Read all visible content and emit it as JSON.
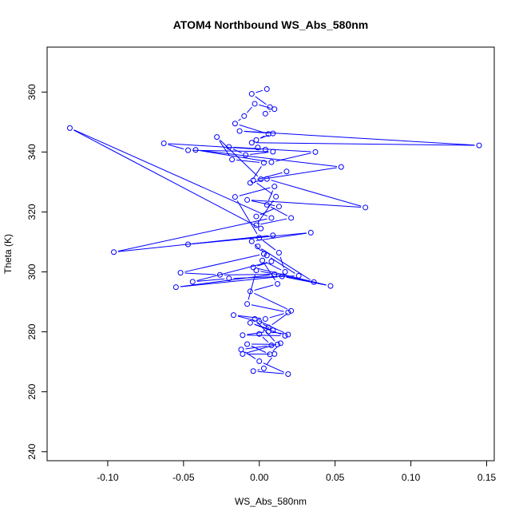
{
  "chart_data": {
    "type": "line",
    "title": "ATOM4 Northbound WS_Abs_580nm",
    "xlabel": "WS_Abs_580nm",
    "ylabel": "Theta (K)",
    "xlim": [
      -0.14,
      0.155
    ],
    "ylim": [
      237,
      375
    ],
    "xticks": [
      -0.1,
      -0.05,
      0.0,
      0.05,
      0.1,
      0.15
    ],
    "xtick_labels": [
      "-0.10",
      "-0.05",
      "0.00",
      "0.05",
      "0.10",
      "0.15"
    ],
    "yticks": [
      240,
      260,
      280,
      300,
      320,
      340,
      360
    ],
    "ytick_labels": [
      "240",
      "260",
      "280",
      "300",
      "320",
      "340",
      "360"
    ],
    "grid": false,
    "legend": "none",
    "marker": "open-circle",
    "color": "#0000ff",
    "series": [
      {
        "x": [
          0.005,
          -0.005,
          0.007,
          0.004,
          0.01,
          -0.003,
          -0.01,
          -0.016,
          0.006,
          -0.002,
          0.009,
          -0.013,
          0.145,
          -0.005,
          -0.001,
          0.004,
          -0.063,
          -0.047,
          0.009,
          -0.009,
          -0.02,
          0.037,
          0.008,
          -0.042,
          0.054,
          0.001,
          -0.028,
          -0.018,
          0.003,
          -0.006,
          0.005,
          0.07,
          -0.008,
          0.013,
          -0.002,
          0.001,
          -0.125,
          0.008,
          -0.096,
          0.009,
          -0.047,
          0.034,
          -0.005,
          0.003,
          -0.052,
          -0.026,
          0.01,
          -0.055,
          0.015,
          0.047,
          -0.004,
          0.008,
          -0.044,
          -0.02,
          0.026,
          0.005,
          -0.001,
          0.036,
          -0.002,
          -0.008,
          0.019,
          0.004,
          -0.017,
          0.0,
          0.009,
          -0.006,
          0.017,
          -0.011,
          0.006,
          0.019,
          -0.003,
          0.012,
          -0.008,
          0.007,
          0.014,
          -0.011,
          0.01,
          0.003,
          -0.004,
          0.019,
          0.0,
          -0.012,
          0.008,
          0.0,
          0.006,
          0.021,
          -0.006,
          0.012,
          0.002,
          0.017,
          0.013,
          0.0,
          -0.016,
          0.01,
          0.005,
          0.021,
          -0.002,
          0.011,
          -0.004,
          0.018
        ],
        "y": [
          361.0,
          359.4,
          355.0,
          352.8,
          354.3,
          356.1,
          352.0,
          349.5,
          346.0,
          344.0,
          346.2,
          347.0,
          342.2,
          343.1,
          341.5,
          340.8,
          342.9,
          340.6,
          340.1,
          339.0,
          341.7,
          340.0,
          336.6,
          340.7,
          335.0,
          330.9,
          345.0,
          337.5,
          336.4,
          329.7,
          331.0,
          321.5,
          324.0,
          321.8,
          318.5,
          314.5,
          348.0,
          318.0,
          306.6,
          312.2,
          309.2,
          313.1,
          310.2,
          306.0,
          299.7,
          299.0,
          299.2,
          294.9,
          298.5,
          295.3,
          301.5,
          303.5,
          296.7,
          297.8,
          298.7,
          305.5,
          308.5,
          296.6,
          300.5,
          289.3,
          286.5,
          284.3,
          285.6,
          283.4,
          280.5,
          283.0,
          278.7,
          278.9,
          280.1,
          279.1,
          284.3,
          275.8,
          275.9,
          272.5,
          276.2,
          272.6,
          272.6,
          267.8,
          266.9,
          265.9,
          270.2,
          274.1,
          275.5,
          279.3,
          281.5,
          287.0,
          293.5,
          296.0,
          303.8,
          300.0,
          306.4,
          311.4,
          325.0,
          328.5,
          322.4,
          318.0,
          315.6,
          325.1,
          330.5,
          333.5
        ]
      }
    ]
  }
}
